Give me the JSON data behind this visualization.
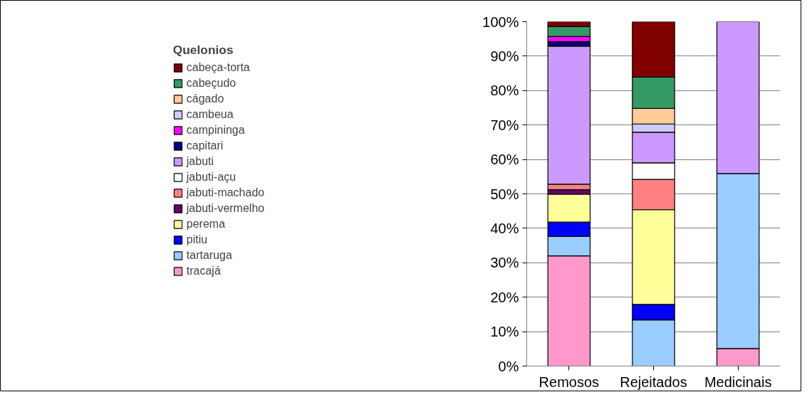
{
  "chart_data": {
    "type": "bar",
    "stacked": true,
    "legend_title": "Quelonios",
    "legend": "left",
    "grid": "y",
    "categories": [
      "Remosos",
      "Rejeitados",
      "Medicinais"
    ],
    "ylim": [
      0,
      100
    ],
    "yticks": [
      {
        "value": 0,
        "label": "0%"
      },
      {
        "value": 10,
        "label": "10%"
      },
      {
        "value": 20,
        "label": "20%"
      },
      {
        "value": 30,
        "label": "30%"
      },
      {
        "value": 40,
        "label": "40%"
      },
      {
        "value": 50,
        "label": "50%"
      },
      {
        "value": 60,
        "label": "60%"
      },
      {
        "value": 70,
        "label": "70%"
      },
      {
        "value": 80,
        "label": "80%"
      },
      {
        "value": 90,
        "label": "90%"
      },
      {
        "value": 100,
        "label": "100%"
      }
    ],
    "series": [
      {
        "name": "tracajá",
        "color": "#ff99cc",
        "values": [
          32.0,
          null,
          5.1
        ]
      },
      {
        "name": "tartaruga",
        "color": "#99ccff",
        "values": [
          5.7,
          13.4,
          50.8
        ]
      },
      {
        "name": "pitiu",
        "color": "#0000ff",
        "values": [
          4.1,
          4.5,
          null
        ]
      },
      {
        "name": "perema",
        "color": "#ffff99",
        "values": [
          8.1,
          27.5,
          null
        ]
      },
      {
        "name": "jabuti-vermelho",
        "color": "#660066",
        "values": [
          1.3,
          null,
          null
        ]
      },
      {
        "name": "jabuti-machado",
        "color": "#ff8080",
        "values": [
          1.6,
          8.8,
          null
        ]
      },
      {
        "name": "jabuti-açu",
        "color": "#ffffff",
        "values": [
          null,
          4.8,
          null
        ]
      },
      {
        "name": "jabuti",
        "color": "#cc99ff",
        "values": [
          40.1,
          8.9,
          44.1
        ]
      },
      {
        "name": "capitari",
        "color": "#000080",
        "values": [
          1.3,
          null,
          null
        ]
      },
      {
        "name": "campininga",
        "color": "#ff00ff",
        "values": [
          1.5,
          null,
          null
        ]
      },
      {
        "name": "cambeua",
        "color": "#ccccff",
        "values": [
          null,
          2.4,
          null
        ]
      },
      {
        "name": "cágado",
        "color": "#ffcc99",
        "values": [
          null,
          4.5,
          null
        ]
      },
      {
        "name": "cabeçudo",
        "color": "#339966",
        "values": [
          2.9,
          9.1,
          null
        ]
      },
      {
        "name": "cabeça-torta",
        "color": "#800000",
        "values": [
          1.4,
          16.1,
          null
        ]
      }
    ]
  }
}
